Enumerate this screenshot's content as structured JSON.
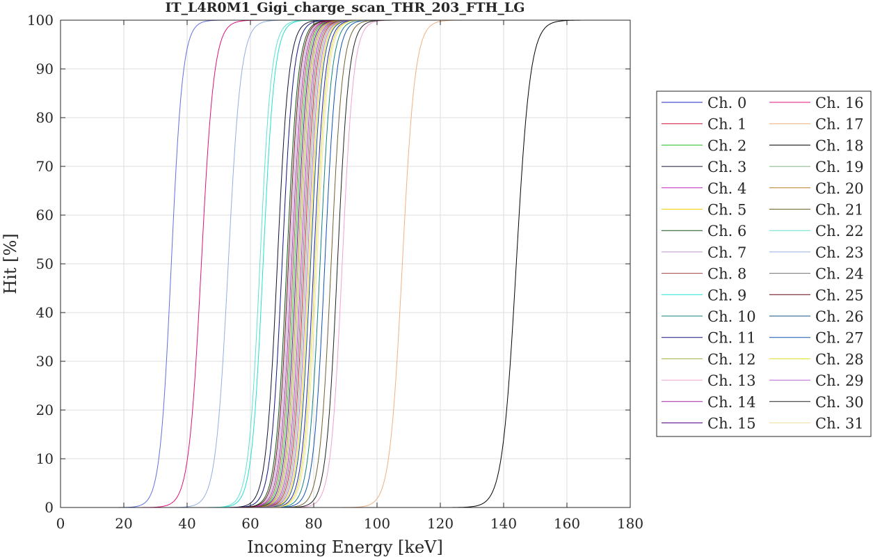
{
  "chart_data": {
    "type": "line",
    "title": "IT_L4R0M1_Gigi_charge_scan_THR_203_FTH_LG",
    "xlabel": "Incoming Energy [keV]",
    "ylabel": "Hit [%]",
    "xlim": [
      0,
      180
    ],
    "ylim": [
      0,
      100
    ],
    "xticks": [
      0,
      20,
      40,
      60,
      80,
      100,
      120,
      140,
      160,
      180
    ],
    "yticks": [
      0,
      10,
      20,
      30,
      40,
      50,
      60,
      70,
      80,
      90,
      100
    ],
    "grid": true,
    "legend_position": "right",
    "legend_columns": 2,
    "x_start": 0,
    "x_end": 168,
    "series": [
      {
        "name": "Ch. 0",
        "color": "#2020c0",
        "midpoint": 80.0,
        "width": 1.8
      },
      {
        "name": "Ch. 1",
        "color": "#d01030",
        "midpoint": 77.0,
        "width": 1.8
      },
      {
        "name": "Ch. 2",
        "color": "#20c020",
        "midpoint": 74.0,
        "width": 1.8
      },
      {
        "name": "Ch. 3",
        "color": "#101030",
        "midpoint": 68.5,
        "width": 1.8
      },
      {
        "name": "Ch. 4",
        "color": "#c020c0",
        "midpoint": 76.0,
        "width": 1.8
      },
      {
        "name": "Ch. 5",
        "color": "#f0d000",
        "midpoint": 78.5,
        "width": 1.8
      },
      {
        "name": "Ch. 6",
        "color": "#105010",
        "midpoint": 71.5,
        "width": 1.8
      },
      {
        "name": "Ch. 7",
        "color": "#c090d0",
        "midpoint": 72.5,
        "width": 1.8
      },
      {
        "name": "Ch. 8",
        "color": "#a04040",
        "midpoint": 73.5,
        "width": 1.8
      },
      {
        "name": "Ch. 9",
        "color": "#20e0d0",
        "midpoint": 64.0,
        "width": 1.8
      },
      {
        "name": "Ch. 10",
        "color": "#108080",
        "midpoint": 82.0,
        "width": 1.8
      },
      {
        "name": "Ch. 11",
        "color": "#101080",
        "midpoint": 70.0,
        "width": 1.8
      },
      {
        "name": "Ch. 12",
        "color": "#a0b040",
        "midpoint": 75.5,
        "width": 1.8
      },
      {
        "name": "Ch. 13",
        "color": "#f0a0d0",
        "midpoint": 89.0,
        "width": 1.8
      },
      {
        "name": "Ch. 14",
        "color": "#a020a0",
        "midpoint": 73.0,
        "width": 1.8
      },
      {
        "name": "Ch. 15",
        "color": "#500080",
        "midpoint": 74.5,
        "width": 1.8
      },
      {
        "name": "Ch. 16",
        "color": "#e0107a",
        "midpoint": 44.5,
        "width": 2.0
      },
      {
        "name": "Ch. 17",
        "color": "#f0b080",
        "midpoint": 108.0,
        "width": 2.0
      },
      {
        "name": "Ch. 18",
        "color": "#000000",
        "midpoint": 144.0,
        "width": 2.2
      },
      {
        "name": "Ch. 19",
        "color": "#80b080",
        "midpoint": 77.5,
        "width": 1.8
      },
      {
        "name": "Ch. 20",
        "color": "#b08020",
        "midpoint": 75.0,
        "width": 1.8
      },
      {
        "name": "Ch. 21",
        "color": "#706030",
        "midpoint": 85.5,
        "width": 1.8
      },
      {
        "name": "Ch. 22",
        "color": "#60e0d0",
        "midpoint": 63.0,
        "width": 1.8
      },
      {
        "name": "Ch. 23",
        "color": "#90b0e0",
        "midpoint": 53.0,
        "width": 2.0
      },
      {
        "name": "Ch. 24",
        "color": "#707070",
        "midpoint": 76.5,
        "width": 1.8
      },
      {
        "name": "Ch. 25",
        "color": "#600010",
        "midpoint": 72.0,
        "width": 1.8
      },
      {
        "name": "Ch. 26",
        "color": "#105080",
        "midpoint": 79.0,
        "width": 1.8
      },
      {
        "name": "Ch. 27",
        "color": "#1050b0",
        "midpoint": 83.5,
        "width": 1.8
      },
      {
        "name": "Ch. 28",
        "color": "#e0e020",
        "midpoint": 80.5,
        "width": 1.8
      },
      {
        "name": "Ch. 29",
        "color": "#b060d0",
        "midpoint": 78.0,
        "width": 1.8
      },
      {
        "name": "Ch. 30",
        "color": "#202020",
        "midpoint": 87.5,
        "width": 1.8
      },
      {
        "name": "Ch. 31",
        "color": "#f0e0a0",
        "midpoint": 81.0,
        "width": 1.8
      }
    ],
    "extra_curve": {
      "color": "#6070e0",
      "midpoint": 35.0,
      "width": 1.8
    }
  }
}
